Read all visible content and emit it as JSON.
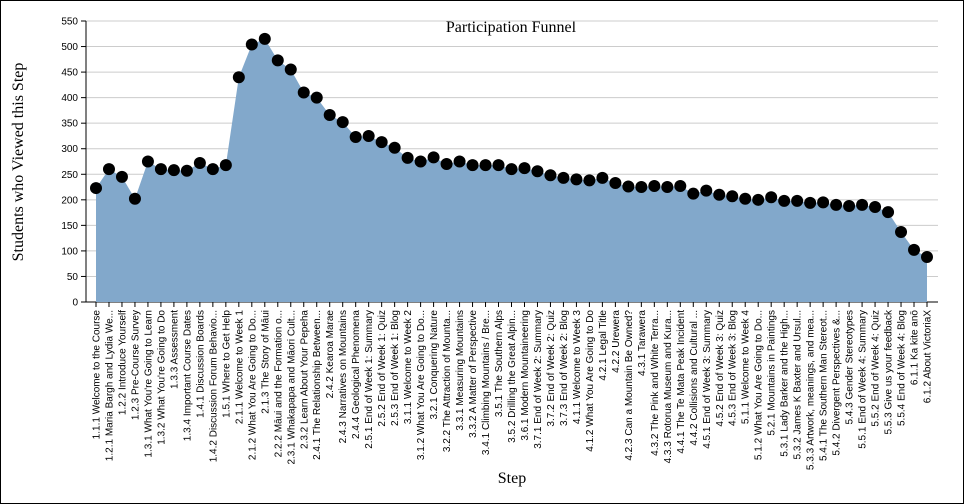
{
  "chart_data": {
    "type": "area",
    "title": "Participation Funnel",
    "x_label": "Step",
    "y_label": "Students who Viewed this Step",
    "categories": [
      "1.1.1 Welcome to the Course",
      "1.2.1 Maria Bargh and Lydia We...",
      "1.2.2 Introduce Yourself",
      "1.2.3 Pre-Course Survey",
      "1.3.1 What You're Going to Learn",
      "1.3.2 What You're Going to Do",
      "1.3.3 Assessment",
      "1.3.4 Important Course Dates",
      "1.4.1 Discussion Boards",
      "1.4.2 Discussion Forum Behavio...",
      "1.5.1 Where to Get Help",
      "2.1.1 Welcome to Week 1",
      "2.1.2 What You Are Going to Do...",
      "2.1.3 The Story of Māui",
      "2.2.2 Māui and the Formation o...",
      "2.3.1 Whakapapa and Māori Cult...",
      "2.3.2 Learn About Your Pepeha",
      "2.4.1 The Relationship Between...",
      "2.4.2 Kearoa Marae",
      "2.4.3 Narratives on Mountains",
      "2.4.4 Geological Phenomena",
      "2.5.1 End of Week 1: Summary",
      "2.5.2 End of Week 1: Quiz",
      "2.5.3 End of Week 1: Blog",
      "3.1.1 Welcome to Week 2",
      "3.1.2 What You Are Going to Do...",
      "3.2.1 Conquering Nature",
      "3.2.2 The Attraction of Mounta...",
      "3.3.1 Measuring Mountains",
      "3.3.2 A Matter of Perspective",
      "3.4.1 Climbing Mountains / Bre...",
      "3.5.1 The Southern Alps",
      "3.5.2 Drilling the Great Alpin...",
      "3.6.1 Modern Mountaineering",
      "3.7.1 End of Week 2: Summary",
      "3.7.2 End of Week 2: Quiz",
      "3.7.3 End of Week 2: Blog",
      "4.1.1 Welcome to Week 3",
      "4.1.2 What You Are Going to Do",
      "4.2.1 Legal Title",
      "4.2.2 Urewera",
      "4.2.3 Can a Mountain Be Owned?",
      "4.3.1 Tarawera",
      "4.3.2 The Pink and White Terra...",
      "4.3.3 Rotorua Museum and Kura...",
      "4.4.1 The Te Mata Peak Incident",
      "4.4.2 Collisions and Cultural ...",
      "4.5.1 End of Week 3: Summary",
      "4.5.2 End of Week 3: Quiz",
      "4.5.3 End of Week 3: Blog",
      "5.1.1 Welcome to Week 4",
      "5.1.2 What You Are Going to Do...",
      "5.2.1 Mountains in Paintings",
      "5.3.1 Lady Barker and the High...",
      "5.3.2 James K Baxter and Ursul...",
      "5.3.3 Artwork, meanings, and mea...",
      "5.4.1 The Southern Man Stereot...",
      "5.4.2 Divergent Perspectives &...",
      "5.4.3 Gender Stereotypes",
      "5.5.1 End of Week 4: Summary",
      "5.5.2 End of Week 4: Quiz",
      "5.5.3 Give us your feedback",
      "5.5.4 End of Week 4: Blog",
      "6.1.1 Ka kite anō",
      "6.1.2 About VictoriaX"
    ],
    "values": [
      223,
      260,
      245,
      202,
      275,
      260,
      258,
      257,
      272,
      260,
      268,
      440,
      504,
      515,
      473,
      455,
      410,
      400,
      366,
      352,
      323,
      325,
      313,
      302,
      282,
      275,
      283,
      270,
      275,
      268,
      268,
      268,
      260,
      262,
      256,
      248,
      243,
      240,
      238,
      243,
      233,
      226,
      225,
      227,
      225,
      227,
      212,
      218,
      210,
      207,
      202,
      200,
      205,
      198,
      198,
      194,
      195,
      190,
      188,
      190,
      186,
      176,
      137,
      102,
      88
    ],
    "color": "#82a8cb",
    "point_color": "#000000",
    "ylim": [
      0,
      550
    ],
    "yticks": [
      0,
      50,
      100,
      150,
      200,
      250,
      300,
      350,
      400,
      450,
      500,
      550
    ],
    "grid": true
  }
}
